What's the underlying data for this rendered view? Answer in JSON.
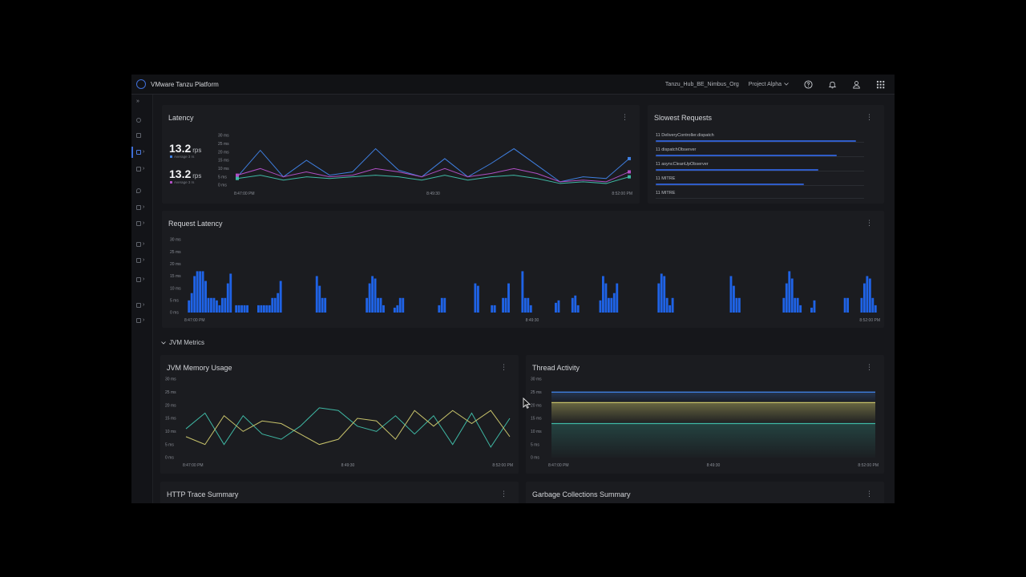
{
  "header": {
    "app_title": "VMware Tanzu Platform",
    "org": "Tanzu_Hub_BE_Nimbus_Org",
    "project": "Project Alpha"
  },
  "icons": {
    "help": "help-circle-icon",
    "notifications": "bell-icon",
    "user": "user-icon",
    "apps": "grid-icon"
  },
  "colors": {
    "accent": "#3f6fd8",
    "bar": "#1f63e6",
    "teal": "#3fb8a4",
    "yellow": "#c7c26a",
    "purple": "#b04fc4"
  },
  "latency": {
    "title": "Latency",
    "stat1": {
      "value": "13.2",
      "unit": "rps",
      "sub": "Average 3 rs"
    },
    "stat2": {
      "value": "13.2",
      "unit": "rps",
      "sub": "Average 3 rs"
    },
    "y_ticks": [
      "30 ms",
      "25 ms",
      "20 ms",
      "15 ms",
      "10 ms",
      "5 ms",
      "0 ms"
    ],
    "x_ticks": [
      "8:47:00 PM",
      "8:49:30",
      "8:52:00 PM"
    ]
  },
  "slowest": {
    "title": "Slowest Requests",
    "items": [
      {
        "count": "11",
        "name": "DeliveryController.dispatch",
        "bar": 0.96
      },
      {
        "count": "11",
        "name": "dispatchObserver",
        "bar": 0.87
      },
      {
        "count": "11",
        "name": "asyncCleanUpObserver",
        "bar": 0.78
      },
      {
        "count": "11",
        "name": "MITRE",
        "bar": 0.71
      },
      {
        "count": "11",
        "name": "MITRE",
        "bar": 0.0
      }
    ]
  },
  "request_latency": {
    "title": "Request Latency",
    "y_ticks": [
      "30 ms",
      "25 ms",
      "20 ms",
      "15 ms",
      "10 ms",
      "5 ms",
      "0 ms"
    ],
    "x_ticks": [
      "8:47:00 PM",
      "8:49:30",
      "8:52:00 PM"
    ]
  },
  "section": {
    "label": "JVM Metrics"
  },
  "jvm_memory": {
    "title": "JVM Memory Usage",
    "y_ticks": [
      "30 ms",
      "25 ms",
      "20 ms",
      "15 ms",
      "10 ms",
      "5 ms",
      "0 ms"
    ],
    "x_ticks": [
      "8:47:00 PM",
      "8:49:30",
      "8:52:00 PM"
    ]
  },
  "thread": {
    "title": "Thread Activity",
    "y_ticks": [
      "30 ms",
      "25 ms",
      "20 ms",
      "15 ms",
      "10 ms",
      "5 ms",
      "0 ms"
    ],
    "x_ticks": [
      "8:47:00 PM",
      "8:49:30",
      "8:52:00 PM"
    ]
  },
  "http_trace": {
    "title": "HTTP Trace Summary"
  },
  "gc": {
    "title": "Garbage Collections Summary"
  },
  "chart_data": [
    {
      "type": "line",
      "id": "latency",
      "ylim": [
        0,
        30
      ],
      "series": [
        {
          "color": "#3f7fe0",
          "values": [
            5,
            21,
            5,
            15,
            6,
            8,
            22,
            9,
            5,
            16,
            5,
            13,
            22,
            12,
            2,
            5,
            4,
            16
          ]
        },
        {
          "color": "#b04fc4",
          "values": [
            6,
            10,
            5,
            8,
            5,
            6,
            10,
            8,
            5,
            10,
            5,
            7,
            10,
            7,
            2,
            3,
            2,
            8
          ]
        },
        {
          "color": "#3fb8a4",
          "values": [
            4,
            6,
            3,
            5,
            4,
            5,
            6,
            5,
            3,
            6,
            3,
            5,
            6,
            4,
            1,
            2,
            1,
            5
          ]
        }
      ]
    },
    {
      "type": "bar",
      "id": "request_latency",
      "ylim": [
        0,
        30
      ],
      "values": [
        5,
        8,
        15,
        17,
        17,
        17,
        13,
        6,
        6,
        6,
        5,
        3,
        6,
        6,
        12,
        16,
        0,
        3,
        3,
        3,
        3,
        3,
        0,
        0,
        0,
        3,
        3,
        3,
        3,
        3,
        6,
        6,
        8,
        13,
        0,
        0,
        0,
        0,
        0,
        0,
        0,
        0,
        0,
        0,
        0,
        0,
        15,
        11,
        6,
        6,
        0,
        0,
        0,
        0,
        0,
        0,
        0,
        0,
        0,
        0,
        0,
        0,
        0,
        0,
        6,
        12,
        15,
        14,
        6,
        6,
        3,
        0,
        0,
        0,
        2,
        3,
        6,
        6,
        0,
        0,
        0,
        0,
        0,
        0,
        0,
        0,
        0,
        0,
        0,
        0,
        3,
        6,
        6,
        0,
        0,
        0,
        0,
        0,
        0,
        0,
        0,
        0,
        0,
        12,
        11,
        0,
        0,
        0,
        0,
        3,
        3,
        0,
        0,
        6,
        6,
        12,
        0,
        0,
        0,
        0,
        17,
        6,
        6,
        3,
        0,
        0,
        0,
        0,
        0,
        0,
        0,
        0,
        4,
        5,
        0,
        0,
        0,
        0,
        6,
        7,
        3,
        0,
        0,
        0,
        0,
        0,
        0,
        0,
        5,
        15,
        12,
        6,
        6,
        8,
        12,
        0,
        0,
        0,
        0,
        0,
        0,
        0,
        0,
        0,
        0,
        0,
        0,
        0,
        0,
        12,
        16,
        15,
        6,
        3,
        6,
        0,
        0,
        0,
        0,
        0,
        0,
        0,
        0,
        0,
        0,
        0,
        0,
        0,
        0,
        0,
        0,
        0,
        0,
        0,
        0,
        15,
        11,
        6,
        6,
        0,
        0,
        0,
        0,
        0,
        0,
        0,
        0,
        0,
        0,
        0,
        0,
        0,
        0,
        0,
        6,
        12,
        17,
        14,
        6,
        6,
        3,
        0,
        0,
        0,
        2,
        5,
        0,
        0,
        0,
        0,
        0,
        0,
        0,
        0,
        0,
        0,
        6,
        6,
        0,
        0,
        0,
        0,
        6,
        12,
        15,
        14,
        6,
        3
      ]
    },
    {
      "type": "line",
      "id": "jvm_memory",
      "ylim": [
        0,
        30
      ],
      "series": [
        {
          "color": "#3fb8a4",
          "values": [
            11,
            17,
            5,
            16,
            9,
            7,
            12,
            19,
            18,
            12,
            10,
            16,
            9,
            16,
            5,
            17,
            4,
            15
          ]
        },
        {
          "color": "#c7c26a",
          "values": [
            8,
            5,
            16,
            10,
            14,
            13,
            9,
            5,
            7,
            15,
            14,
            7,
            18,
            12,
            18,
            13,
            18,
            8
          ]
        }
      ]
    },
    {
      "type": "area",
      "id": "thread",
      "ylim": [
        0,
        30
      ],
      "series": [
        {
          "color": "#3f7fe0",
          "values": [
            25,
            25
          ]
        },
        {
          "color": "#c7c26a",
          "values": [
            21,
            21
          ]
        },
        {
          "color": "#3fb8a4",
          "values": [
            13,
            13
          ]
        }
      ]
    }
  ]
}
